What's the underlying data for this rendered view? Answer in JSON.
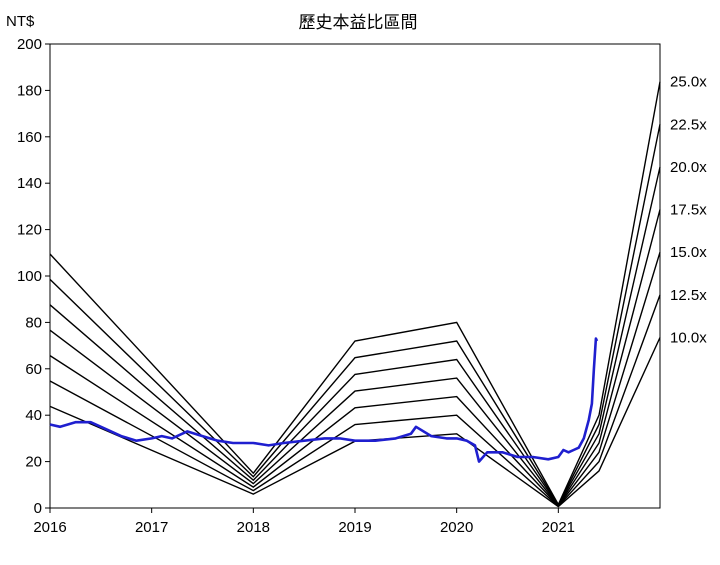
{
  "chart_data": {
    "type": "line",
    "title": "歷史本益比區間",
    "ylabel": "NT$",
    "xlabel": "",
    "xlim": [
      2016,
      2022.0
    ],
    "ylim": [
      0,
      200
    ],
    "x_ticks": [
      2016,
      2017,
      2018,
      2019,
      2020,
      2021
    ],
    "y_ticks": [
      0,
      20,
      40,
      60,
      80,
      100,
      120,
      140,
      160,
      180,
      200
    ],
    "grid": false,
    "band_x": [
      2016,
      2018,
      2019,
      2020,
      2021,
      2021.4,
      2022.0
    ],
    "band_eps": [
      4.38,
      0.6,
      2.88,
      3.2,
      0.06,
      1.6,
      7.35
    ],
    "bands": [
      {
        "name": "25.0x",
        "multiple": 25.0
      },
      {
        "name": "22.5x",
        "multiple": 22.5
      },
      {
        "name": "20.0x",
        "multiple": 20.0
      },
      {
        "name": "17.5x",
        "multiple": 17.5
      },
      {
        "name": "15.0x",
        "multiple": 15.0
      },
      {
        "name": "12.5x",
        "multiple": 12.5
      },
      {
        "name": "10.0x",
        "multiple": 10.0
      }
    ],
    "price_series": {
      "color": "#1f1fcf",
      "x": [
        2016.0,
        2016.1,
        2016.25,
        2016.4,
        2016.55,
        2016.7,
        2016.85,
        2017.0,
        2017.1,
        2017.2,
        2017.35,
        2017.5,
        2017.65,
        2017.8,
        2018.0,
        2018.15,
        2018.3,
        2018.5,
        2018.7,
        2018.85,
        2019.0,
        2019.2,
        2019.4,
        2019.55,
        2019.6,
        2019.75,
        2019.9,
        2020.0,
        2020.1,
        2020.18,
        2020.22,
        2020.3,
        2020.45,
        2020.6,
        2020.75,
        2020.9,
        2021.0,
        2021.05,
        2021.1,
        2021.15,
        2021.2,
        2021.25,
        2021.3,
        2021.33,
        2021.35,
        2021.37,
        2021.38
      ],
      "values": [
        36,
        35,
        37,
        37,
        34,
        31,
        29,
        30,
        31,
        30,
        33,
        31,
        29,
        28,
        28,
        27,
        28,
        29,
        30,
        30,
        29,
        29,
        30,
        32,
        35,
        31,
        30,
        30,
        29,
        27,
        20,
        24,
        24,
        22,
        22,
        21,
        22,
        25,
        24,
        25,
        26,
        30,
        38,
        45,
        60,
        73,
        72
      ]
    },
    "band_labels_position": "right"
  }
}
